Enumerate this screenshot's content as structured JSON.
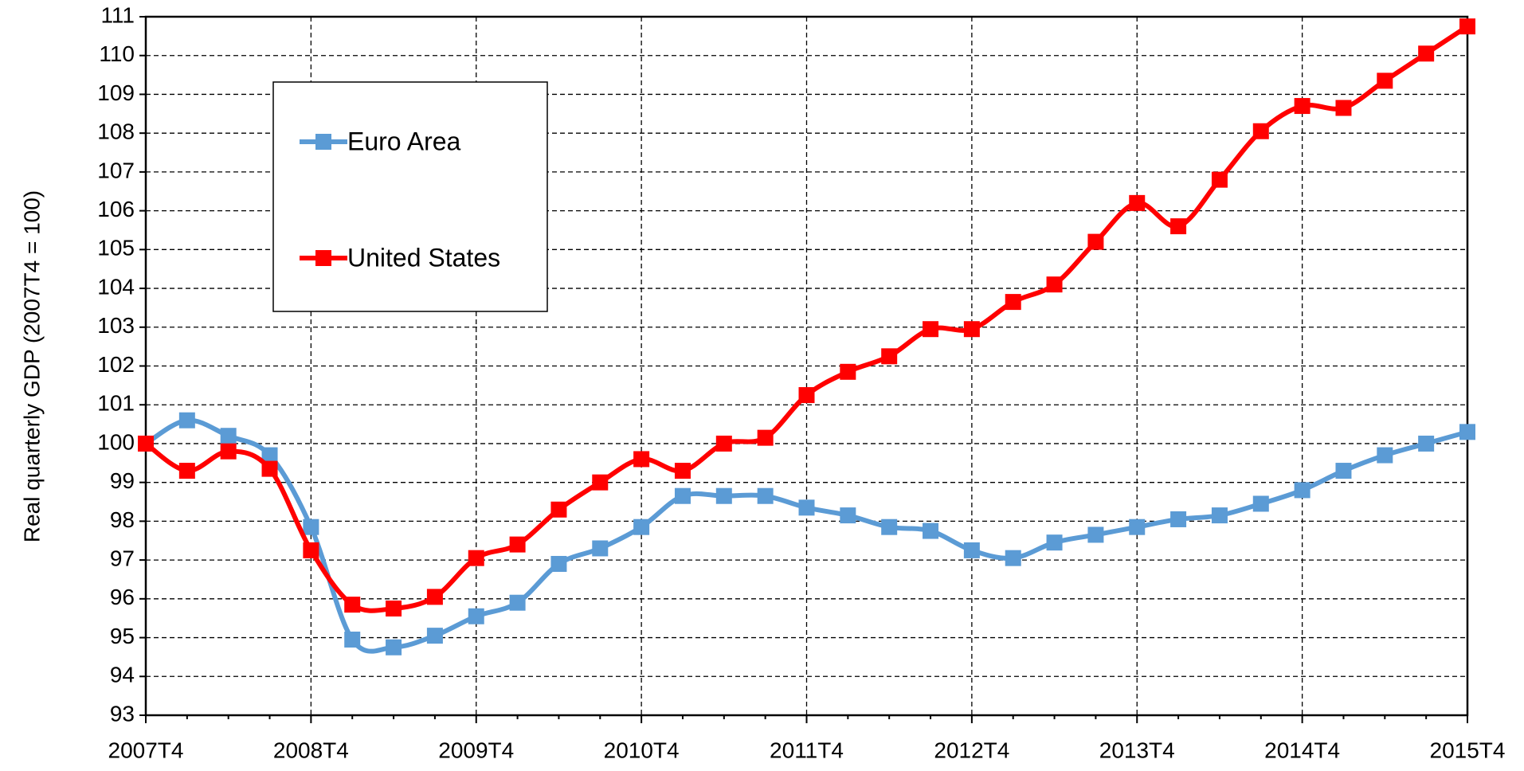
{
  "chart_data": {
    "type": "line",
    "y_label": "Real quarterly GDP (2007T4 = 100)",
    "categories": [
      "2007T4",
      null,
      null,
      null,
      "2008T4",
      null,
      null,
      null,
      "2009T4",
      null,
      null,
      null,
      "2010T4",
      null,
      null,
      null,
      "2011T4",
      null,
      null,
      null,
      "2012T4",
      null,
      null,
      null,
      "2013T4",
      null,
      null,
      null,
      "2014T4",
      null,
      null,
      null,
      "2015T4"
    ],
    "series": [
      {
        "name": "Euro Area",
        "color": "#5b9bd5",
        "values": [
          100,
          100.6,
          100.2,
          99.7,
          97.85,
          94.95,
          94.75,
          95.05,
          95.55,
          95.9,
          96.9,
          97.3,
          97.85,
          98.65,
          98.65,
          98.65,
          98.35,
          98.15,
          97.85,
          97.75,
          97.25,
          97.05,
          97.45,
          97.65,
          97.85,
          98.05,
          98.15,
          98.45,
          98.8,
          99.3,
          99.7,
          100,
          100.3
        ]
      },
      {
        "name": "United States",
        "color": "#ff0000",
        "values": [
          100,
          99.3,
          99.8,
          99.35,
          97.25,
          95.85,
          95.75,
          96.05,
          97.05,
          97.4,
          98.3,
          99.0,
          99.6,
          99.3,
          100.0,
          100.15,
          101.25,
          101.85,
          102.25,
          102.95,
          102.95,
          103.65,
          104.1,
          105.2,
          106.2,
          105.6,
          106.8,
          108.05,
          108.7,
          108.65,
          109.35,
          110.05,
          110.75
        ]
      }
    ],
    "ylim": [
      93,
      111
    ],
    "yticks": [
      93,
      94,
      95,
      96,
      97,
      98,
      99,
      100,
      101,
      102,
      103,
      104,
      105,
      106,
      107,
      108,
      109,
      110,
      111
    ],
    "grid": true,
    "smooth": true,
    "legend": "upper left"
  }
}
